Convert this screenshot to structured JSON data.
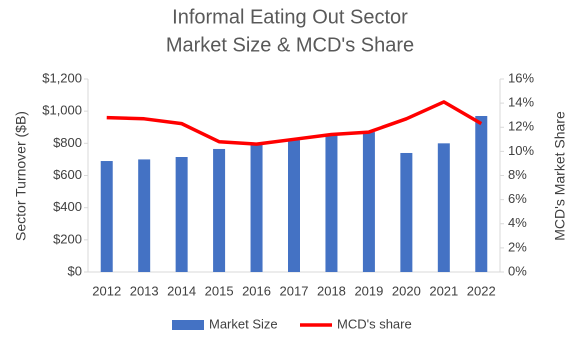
{
  "chart_data": {
    "type": "bar",
    "title": [
      "Informal Eating Out Sector",
      "Market Size & MCD's Share"
    ],
    "y_label": "Sector Turnover ($B)",
    "y2_label": "MCD's Market Share",
    "categories": [
      "2012",
      "2013",
      "2014",
      "2015",
      "2016",
      "2017",
      "2018",
      "2019",
      "2020",
      "2021",
      "2022"
    ],
    "series": [
      {
        "name": "Market Size",
        "type": "bar",
        "color": "#4472c4",
        "values": [
          690,
          700,
          715,
          765,
          795,
          820,
          850,
          870,
          740,
          800,
          970
        ]
      },
      {
        "name": "MCD's share",
        "type": "line",
        "axis": "y2",
        "color": "#ff0000",
        "values": [
          12.8,
          12.7,
          12.3,
          10.8,
          10.6,
          11.0,
          11.4,
          11.6,
          12.7,
          14.1,
          12.3
        ]
      }
    ],
    "ylim": [
      0,
      1200
    ],
    "yticks": [
      {
        "value": 0,
        "label": "$0"
      },
      {
        "value": 200,
        "label": "$200"
      },
      {
        "value": 400,
        "label": "$400"
      },
      {
        "value": 600,
        "label": "$600"
      },
      {
        "value": 800,
        "label": "$800"
      },
      {
        "value": 1000,
        "label": "$1,000"
      },
      {
        "value": 1200,
        "label": "$1,200"
      }
    ],
    "y2lim": [
      0,
      16
    ],
    "y2ticks": [
      {
        "value": 0,
        "label": "0%"
      },
      {
        "value": 2,
        "label": "2%"
      },
      {
        "value": 4,
        "label": "4%"
      },
      {
        "value": 6,
        "label": "6%"
      },
      {
        "value": 8,
        "label": "8%"
      },
      {
        "value": 10,
        "label": "10%"
      },
      {
        "value": 12,
        "label": "12%"
      },
      {
        "value": 14,
        "label": "14%"
      },
      {
        "value": 16,
        "label": "16%"
      }
    ],
    "grid": false,
    "legend": "bottom"
  }
}
